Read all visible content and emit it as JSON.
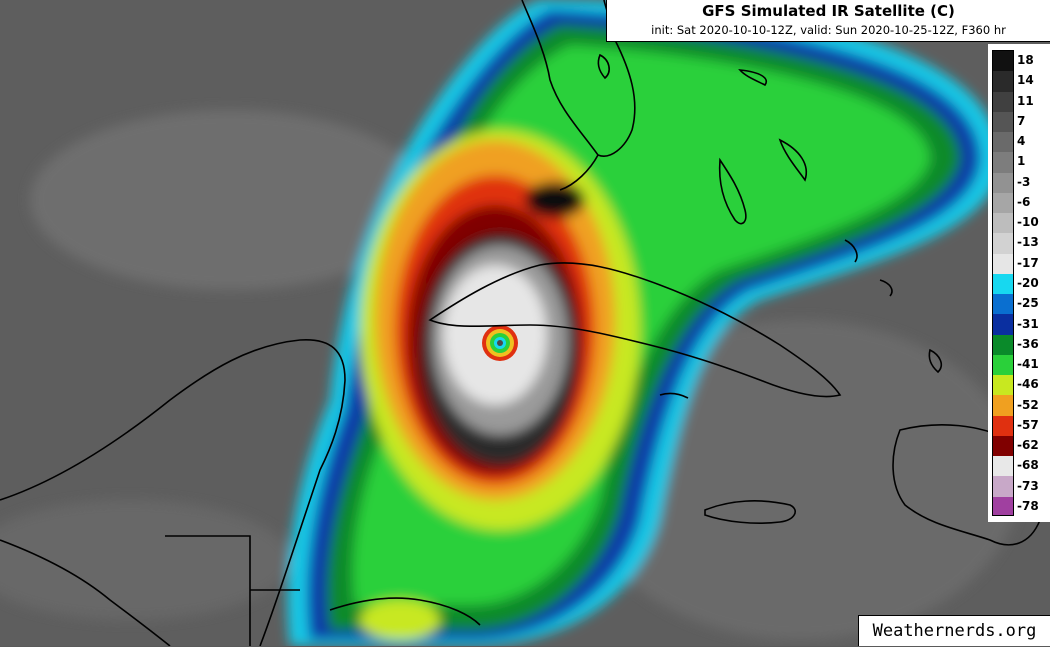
{
  "header": {
    "title": "GFS Simulated IR Satellite (C)",
    "subtitle": "init: Sat 2020-10-10-12Z, valid: Sun 2020-10-25-12Z, F360 hr"
  },
  "colorbar": {
    "labels": [
      "18",
      "14",
      "11",
      "7",
      "4",
      "1",
      "-3",
      "-6",
      "-10",
      "-13",
      "-17",
      "-20",
      "-25",
      "-31",
      "-36",
      "-41",
      "-46",
      "-52",
      "-57",
      "-62",
      "-68",
      "-73",
      "-78"
    ],
    "colors": [
      "#111111",
      "#2a2a2a",
      "#404040",
      "#555555",
      "#6a6a6a",
      "#7d7d7d",
      "#929292",
      "#a6a6a6",
      "#bdbdbd",
      "#d2d2d2",
      "#e6e6e6",
      "#17d8f0",
      "#0a6fd0",
      "#0a2fa0",
      "#0a8a2a",
      "#2ad03a",
      "#c8e820",
      "#f0a020",
      "#e03010",
      "#800000",
      "#e8e8e8",
      "#c8a8c8",
      "#a040a0"
    ]
  },
  "colors": {
    "background": "#5a5a5a",
    "land_outline": "#000000"
  },
  "credit": "Weathernerds.org"
}
